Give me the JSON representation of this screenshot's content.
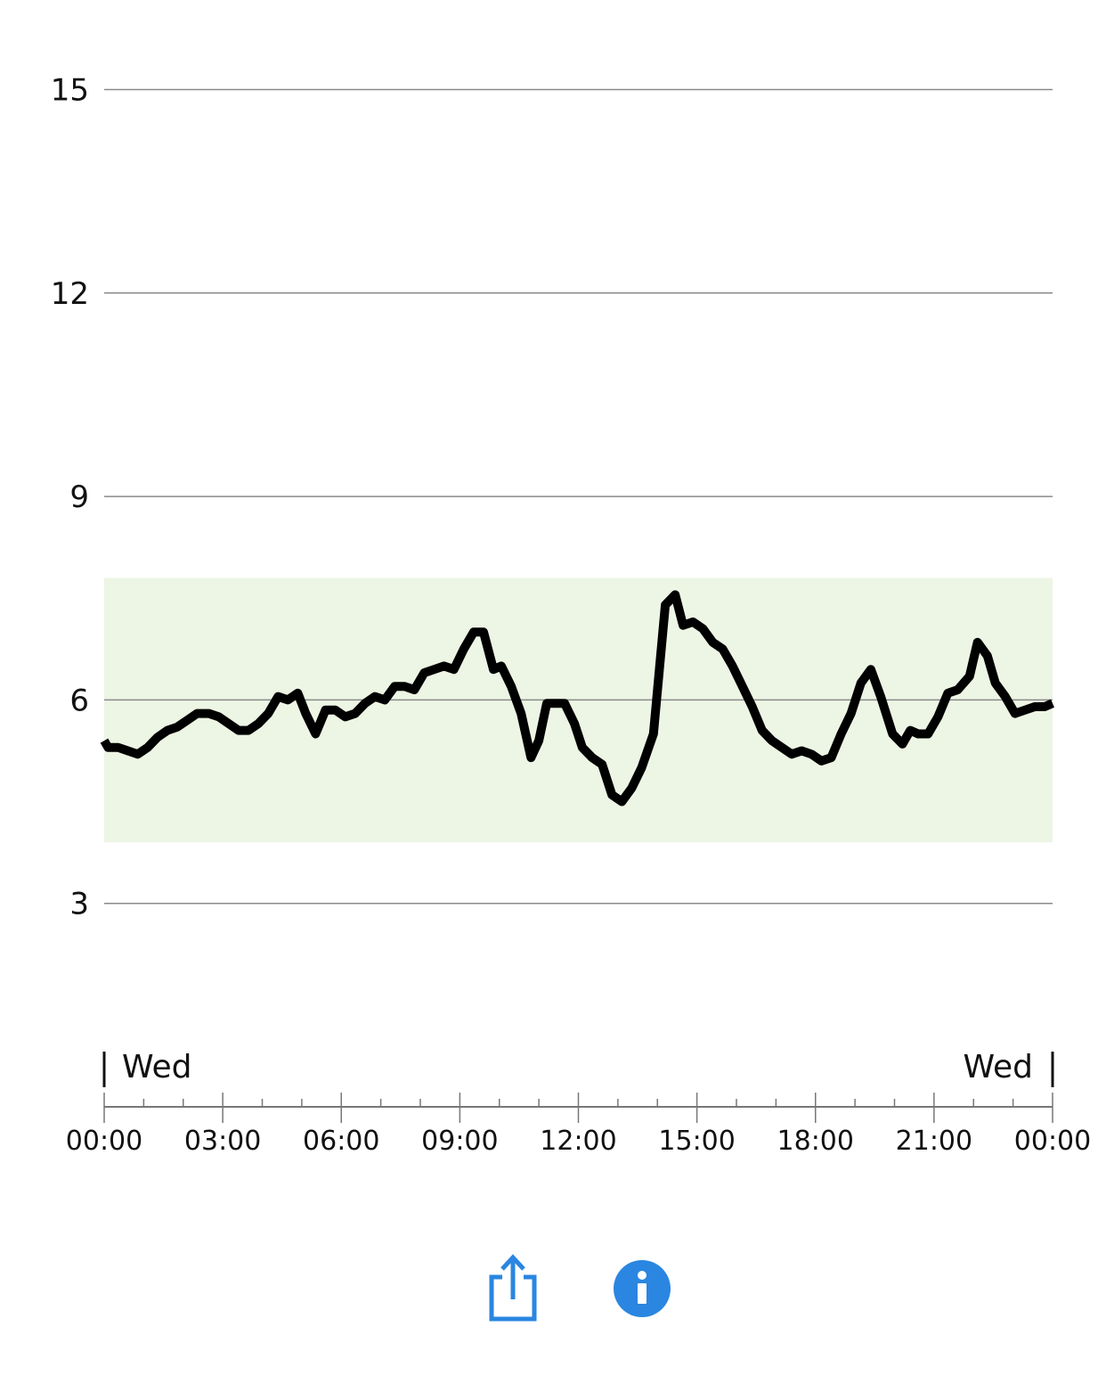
{
  "chart_data": {
    "type": "line",
    "ylim": [
      0,
      16.5
    ],
    "yticks": [
      3,
      6,
      9,
      12,
      15
    ],
    "ytick_labels": [
      "3",
      "6",
      "9",
      "12",
      "15"
    ],
    "xlim_hours": [
      0,
      24
    ],
    "xticks_major_hours": [
      0,
      3,
      6,
      9,
      12,
      15,
      18,
      21,
      24
    ],
    "xtick_labels": [
      "00:00",
      "03:00",
      "06:00",
      "09:00",
      "12:00",
      "15:00",
      "18:00",
      "21:00",
      "00:00"
    ],
    "minor_tick_interval_hours": 1,
    "day_labels": [
      "Wed",
      "Wed"
    ],
    "target_range": [
      3.9,
      7.8
    ],
    "target_color": "#edf5e4",
    "line_color": "#000000",
    "grid": true,
    "series": [
      {
        "x_hours": [
          0.0,
          0.1,
          0.35,
          0.6,
          0.85,
          1.1,
          1.35,
          1.6,
          1.85,
          2.1,
          2.35,
          2.65,
          2.9,
          3.15,
          3.4,
          3.65,
          3.9,
          4.15,
          4.4,
          4.65,
          4.9,
          5.1,
          5.35,
          5.6,
          5.85,
          6.1,
          6.35,
          6.6,
          6.85,
          7.1,
          7.35,
          7.6,
          7.85,
          8.1,
          8.35,
          8.6,
          8.85,
          9.1,
          9.35,
          9.6,
          9.85,
          10.05,
          10.3,
          10.55,
          10.8,
          11.0,
          11.2,
          11.45,
          11.65,
          11.9,
          12.1,
          12.35,
          12.6,
          12.85,
          13.1,
          13.35,
          13.6,
          13.9,
          14.2,
          14.45,
          14.65,
          14.9,
          15.15,
          15.4,
          15.65,
          15.9,
          16.15,
          16.4,
          16.65,
          16.9,
          17.15,
          17.4,
          17.65,
          17.9,
          18.15,
          18.4,
          18.65,
          18.9,
          19.15,
          19.4,
          19.65,
          19.95,
          20.2,
          20.4,
          20.6,
          20.85,
          21.1,
          21.35,
          21.6,
          21.9,
          22.1,
          22.35,
          22.55,
          22.8,
          23.05,
          23.3,
          23.55,
          23.8,
          24.0
        ],
        "y": [
          5.4,
          5.3,
          5.3,
          5.25,
          5.2,
          5.3,
          5.45,
          5.55,
          5.6,
          5.7,
          5.8,
          5.8,
          5.75,
          5.65,
          5.55,
          5.55,
          5.65,
          5.8,
          6.05,
          6.0,
          6.1,
          5.8,
          5.5,
          5.85,
          5.85,
          5.75,
          5.8,
          5.95,
          6.05,
          6.0,
          6.2,
          6.2,
          6.15,
          6.4,
          6.45,
          6.5,
          6.45,
          6.75,
          7.0,
          7.0,
          6.45,
          6.5,
          6.2,
          5.8,
          5.15,
          5.4,
          5.95,
          5.95,
          5.95,
          5.65,
          5.3,
          5.15,
          5.05,
          4.6,
          4.5,
          4.7,
          5.0,
          5.5,
          7.4,
          7.55,
          7.1,
          7.15,
          7.05,
          6.85,
          6.75,
          6.5,
          6.2,
          5.9,
          5.55,
          5.4,
          5.3,
          5.2,
          5.25,
          5.2,
          5.1,
          5.15,
          5.5,
          5.8,
          6.25,
          6.45,
          6.05,
          5.5,
          5.35,
          5.55,
          5.5,
          5.5,
          5.75,
          6.1,
          6.15,
          6.35,
          6.85,
          6.65,
          6.25,
          6.05,
          5.8,
          5.85,
          5.9,
          5.9,
          5.95
        ]
      }
    ]
  },
  "toolbar": {
    "share_icon": "share-icon",
    "info_icon": "info-icon",
    "accent": "#2a86e0"
  }
}
